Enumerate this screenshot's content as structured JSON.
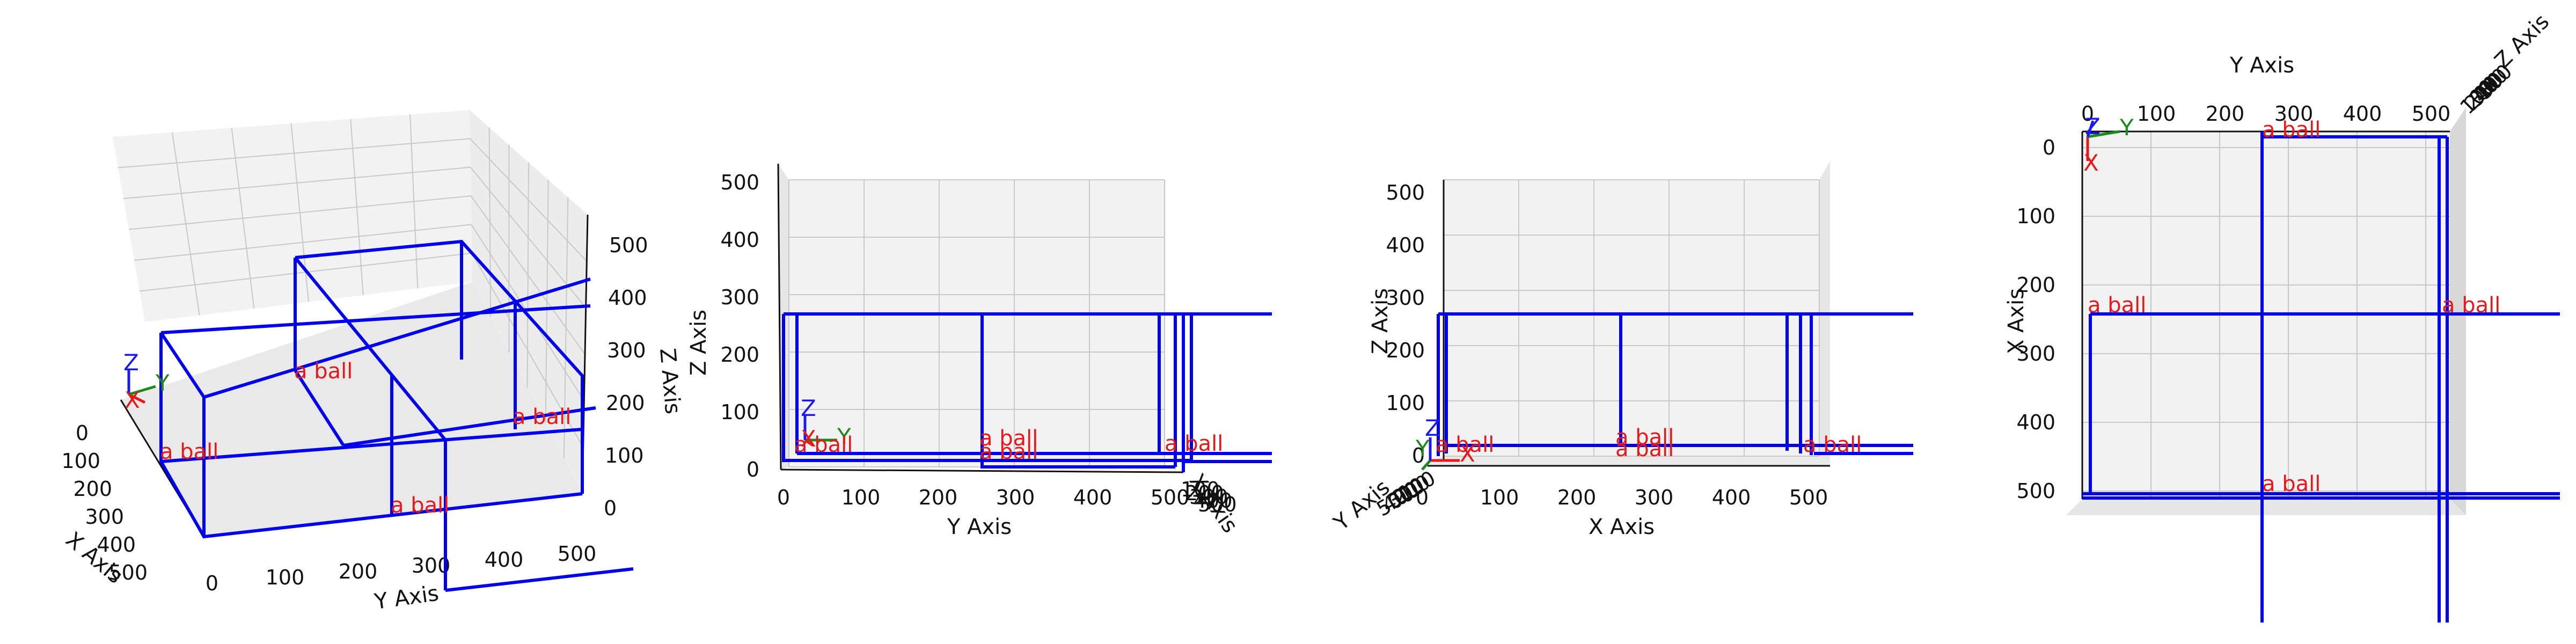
{
  "colors": {
    "box_edge": "#0000ee",
    "ball_label": "#e8181a",
    "axis_x": "#e8181a",
    "axis_y": "#1a8a1a",
    "axis_z": "#1a1aee",
    "pane": "#f2f2f2",
    "pane_dark": "#e6e6e6",
    "grid": "#c8c8c8"
  },
  "chart_data": [
    {
      "type": "3d-wireframe",
      "view": "perspective",
      "axes": {
        "x": "X Axis",
        "y": "Y Axis",
        "z": "Z Axis"
      },
      "x_ticks": [
        "0",
        "100",
        "200",
        "300",
        "400",
        "500"
      ],
      "y_ticks": [
        "0",
        "100",
        "200",
        "300",
        "400",
        "500"
      ],
      "z_ticks": [
        "0",
        "100",
        "200",
        "300",
        "400",
        "500"
      ],
      "triad_labels": [
        "X",
        "Y",
        "Z"
      ],
      "object_labels": [
        "a ball",
        "a ball",
        "a ball",
        "a ball"
      ]
    },
    {
      "type": "3d-wireframe",
      "view": "front (y-z)",
      "axes": {
        "x": "X Axis",
        "y": "Y Axis",
        "z": "Z Axis"
      },
      "y_ticks": [
        "0",
        "100",
        "200",
        "300",
        "400",
        "500"
      ],
      "z_ticks": [
        "0",
        "100",
        "200",
        "300",
        "400",
        "500"
      ],
      "triad_labels": [
        "X",
        "Y",
        "Z"
      ],
      "object_labels": [
        "a ball",
        "a ball",
        "a ball",
        "a ball"
      ]
    },
    {
      "type": "3d-wireframe",
      "view": "side (x-z)",
      "axes": {
        "x": "X Axis",
        "y": "Y Axis",
        "z": "Z Axis"
      },
      "x_ticks": [
        "0",
        "100",
        "200",
        "300",
        "400",
        "500"
      ],
      "z_ticks": [
        "0",
        "100",
        "200",
        "300",
        "400",
        "500"
      ],
      "triad_labels": [
        "X",
        "Y",
        "Z"
      ],
      "object_labels": [
        "a ball",
        "a ball",
        "a ball",
        "a ball"
      ]
    },
    {
      "type": "3d-wireframe",
      "view": "top (x-y)",
      "axes": {
        "x": "X Axis",
        "y": "Y Axis",
        "z": "Z Axis"
      },
      "x_ticks": [
        "0",
        "100",
        "200",
        "300",
        "400",
        "500"
      ],
      "y_ticks": [
        "0",
        "100",
        "200",
        "300",
        "400",
        "500"
      ],
      "triad_labels": [
        "X",
        "Y",
        "Z"
      ],
      "object_labels": [
        "a ball",
        "a ball",
        "a ball",
        "a ball"
      ]
    }
  ]
}
